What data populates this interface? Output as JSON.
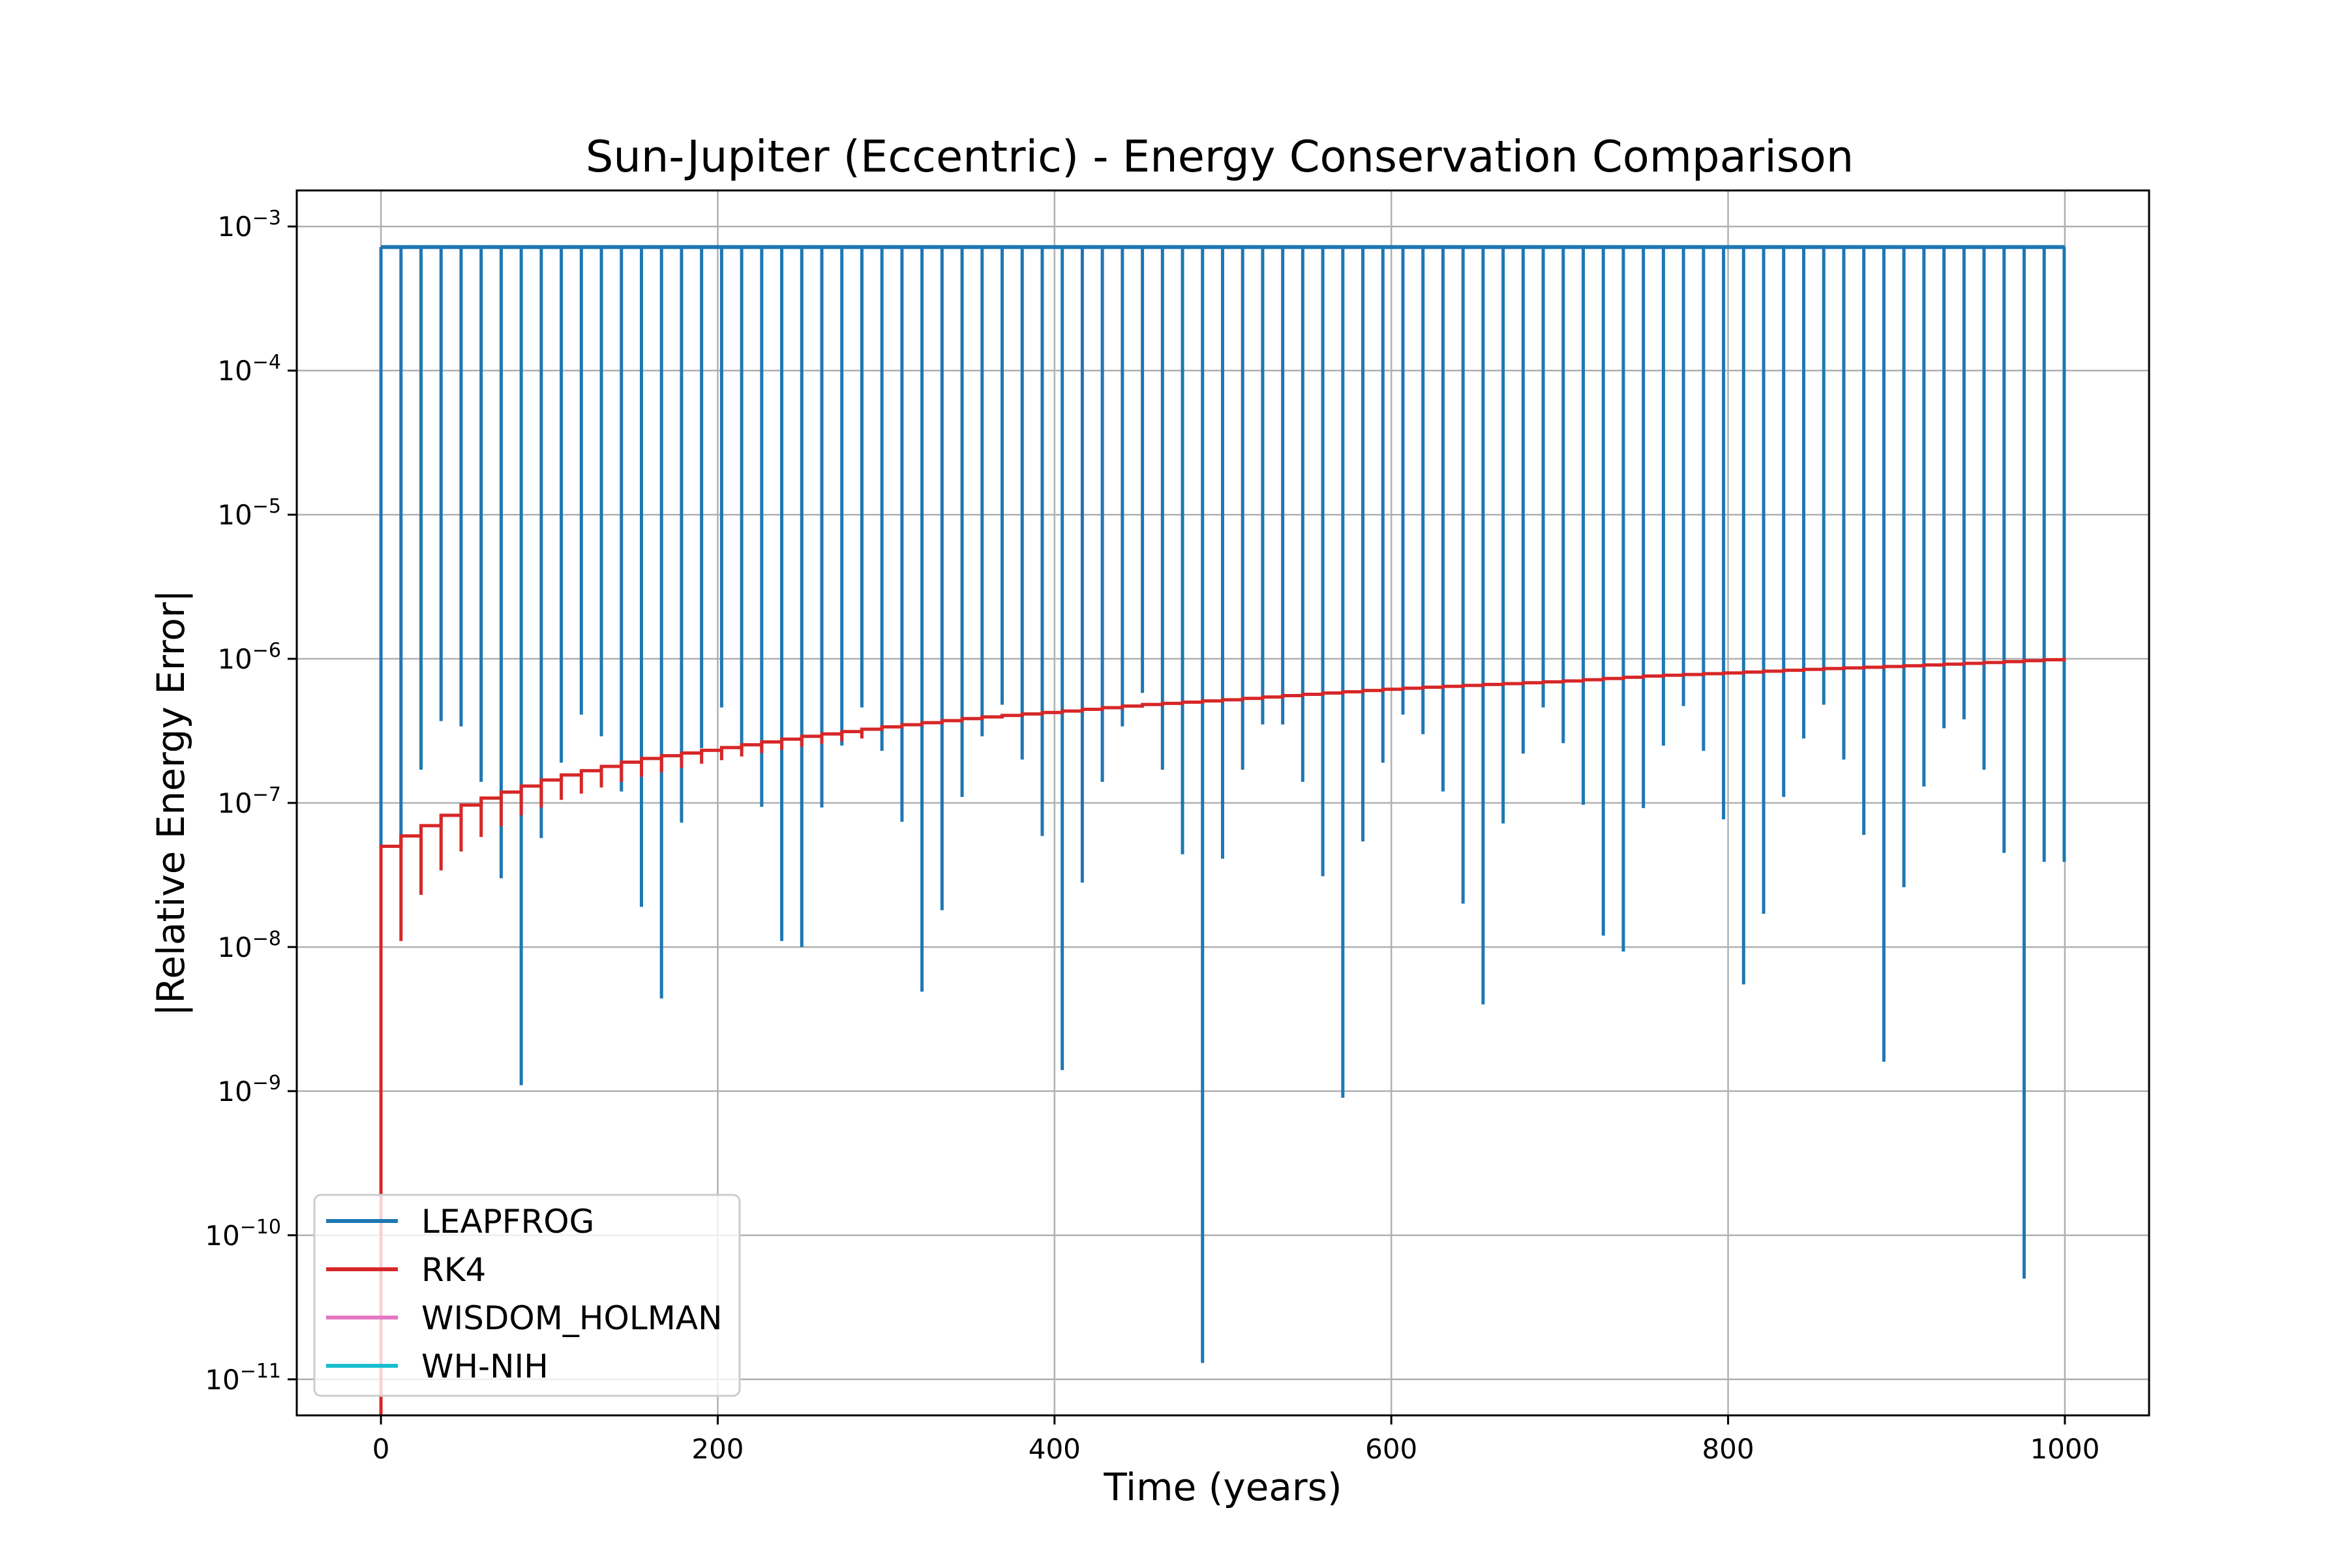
{
  "chart_data": {
    "type": "line",
    "title": "Sun-Jupiter (Eccentric) - Energy Conservation Comparison",
    "xlabel": "Time (years)",
    "ylabel": "|Relative Energy Error|",
    "xlim": [
      -50,
      1050
    ],
    "ylim_log10": [
      -11.25,
      -2.75
    ],
    "yscale": "log",
    "grid": true,
    "legend_position": "lower-left",
    "x_ticks": [
      0,
      200,
      400,
      600,
      800,
      1000
    ],
    "x_tick_labels": [
      "0",
      "200",
      "400",
      "600",
      "800",
      "1000"
    ],
    "y_ticks_log10": [
      -3,
      -4,
      -5,
      -6,
      -7,
      -8,
      -9,
      -10,
      -11
    ],
    "y_tick_labels": [
      {
        "base": "10",
        "exp": "−3"
      },
      {
        "base": "10",
        "exp": "−4"
      },
      {
        "base": "10",
        "exp": "−5"
      },
      {
        "base": "10",
        "exp": "−6"
      },
      {
        "base": "10",
        "exp": "−7"
      },
      {
        "base": "10",
        "exp": "−8"
      },
      {
        "base": "10",
        "exp": "−9"
      },
      {
        "base": "10",
        "exp": "−10"
      },
      {
        "base": "10",
        "exp": "−11"
      }
    ],
    "series": [
      {
        "name": "LEAPFROG",
        "color": "#1f77b4",
        "baseline_value": 0.00072,
        "x_range": [
          0,
          1000
        ],
        "dip_times": [
          0,
          11.9,
          23.8,
          35.7,
          47.6,
          59.5,
          71.4,
          83.3,
          95.2,
          107.1,
          119,
          130.9,
          142.8,
          154.7,
          166.6,
          178.5,
          190.4,
          202.3,
          214.2,
          226.1,
          238,
          249.9,
          261.8,
          273.7,
          285.6,
          297.5,
          309.4,
          321.3,
          333.2,
          345.1,
          357,
          368.9,
          380.8,
          392.7,
          404.6,
          416.5,
          428.4,
          440.3,
          452.2,
          464.1,
          476,
          487.9,
          499.8,
          511.7,
          523.6,
          535.5,
          547.4,
          559.3,
          571.2,
          583.1,
          595,
          606.9,
          618.8,
          630.7,
          642.6,
          654.5,
          666.4,
          678.3,
          690.2,
          702.1,
          714,
          725.9,
          737.8,
          749.7,
          761.6,
          773.5,
          785.4,
          797.3,
          809.2,
          821.1,
          833,
          844.9,
          856.8,
          868.7,
          880.6,
          892.5,
          904.4,
          916.3,
          928.2,
          940.1,
          952,
          963.9,
          975.8,
          987.7,
          999.6
        ],
        "dip_values": [
          5e-08,
          5e-08,
          1.7e-07,
          3.7e-07,
          3.4e-07,
          1.4e-07,
          3e-08,
          1.1e-09,
          5.7e-08,
          1.9e-07,
          4.1e-07,
          2.9e-07,
          1.2e-07,
          1.9e-08,
          4.4e-09,
          7.3e-08,
          2.4e-07,
          4.6e-07,
          2.3e-07,
          9.4e-08,
          1.1e-08,
          1e-08,
          9.3e-08,
          2.5e-07,
          4.6e-07,
          2.3e-07,
          7.4e-08,
          4.9e-09,
          1.8e-08,
          1.1e-07,
          2.9e-07,
          4.8e-07,
          2e-07,
          5.9e-08,
          1.4e-09,
          2.8e-08,
          1.4e-07,
          3.4e-07,
          5.8e-07,
          1.7e-07,
          4.4e-08,
          1.3e-11,
          4.1e-08,
          1.7e-07,
          3.5e-07,
          3.5e-07,
          1.4e-07,
          3.1e-08,
          9e-10,
          5.4e-08,
          1.9e-07,
          4.1e-07,
          3e-07,
          1.2e-07,
          2e-08,
          4e-09,
          7.2e-08,
          2.2e-07,
          4.6e-07,
          2.6e-07,
          9.7e-08,
          1.2e-08,
          9.3e-09,
          9.2e-08,
          2.5e-07,
          4.7e-07,
          2.3e-07,
          7.7e-08,
          5.5e-09,
          1.7e-08,
          1.1e-07,
          2.8e-07,
          4.8e-07,
          2e-07,
          6e-08,
          1.6e-09,
          2.6e-08,
          1.3e-07,
          3.3e-07,
          3.8e-07,
          1.7e-07,
          4.5e-08,
          5e-11,
          3.9e-08,
          3.9e-08
        ]
      },
      {
        "name": "RK4",
        "color": "#d62728",
        "envelope_x": [
          0,
          50,
          100,
          150,
          200,
          250,
          300,
          350,
          400,
          450,
          500,
          550,
          600,
          650,
          700,
          750,
          800,
          850,
          900,
          950,
          1000
        ],
        "envelope_values": [
          5e-08,
          1e-07,
          1.5e-07,
          2e-07,
          2.4e-07,
          2.9e-07,
          3.4e-07,
          3.9e-07,
          4.3e-07,
          4.8e-07,
          5.2e-07,
          5.7e-07,
          6.2e-07,
          6.6e-07,
          7e-07,
          7.6e-07,
          8e-07,
          8.5e-07,
          8.9e-07,
          9.4e-07,
          1e-06
        ],
        "step_period": 11.9,
        "dip_times": [
          11.9,
          23.8,
          35.7,
          47.6,
          59.5,
          71.4,
          83.3,
          95.2,
          107.1,
          119,
          130.9,
          142.8,
          154.7,
          166.6,
          178.5,
          190.4,
          202.3,
          214.2,
          226.1,
          238,
          249.9,
          261.8,
          273.7,
          285.6
        ],
        "dip_values": [
          1.1e-08,
          2.3e-08,
          3.4e-08,
          4.6e-08,
          5.8e-08,
          6.9e-08,
          8.2e-08,
          9.3e-08,
          1.05e-07,
          1.16e-07,
          1.28e-07,
          1.4e-07,
          1.52e-07,
          1.63e-07,
          1.75e-07,
          1.87e-07,
          1.98e-07,
          2.1e-07,
          2.22e-07,
          2.33e-07,
          2.45e-07,
          2.57e-07,
          2.68e-07,
          2.8e-07
        ]
      },
      {
        "name": "WISDOM_HOLMAN",
        "color": "#e377c2",
        "values": []
      },
      {
        "name": "WH-NIH",
        "color": "#17becf",
        "values": []
      }
    ]
  }
}
